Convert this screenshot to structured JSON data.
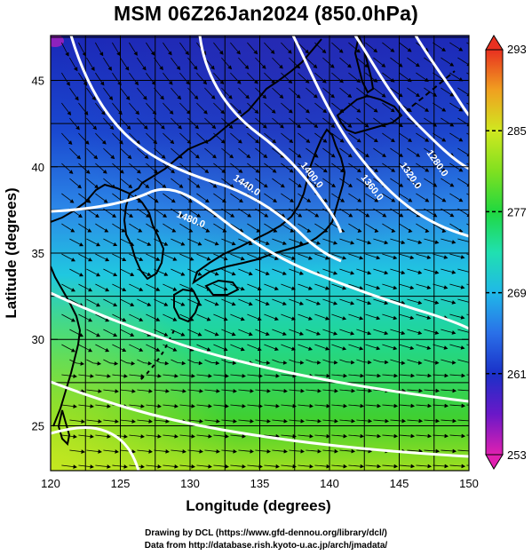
{
  "title": "MSM 06Z26Jan2024 (850.0hPa)",
  "xlabel": "Longitude (degrees)",
  "ylabel": "Latitude  (degrees)",
  "footer": {
    "line1": "Drawing by DCL (https://www.gfd-dennou.org/library/dcl/)",
    "line2": "Data from http://database.rish.kyoto-u.ac.jp/arch/jmadata/"
  },
  "map": {
    "lon_range": [
      120,
      150
    ],
    "lat_range": [
      22.4,
      47.6
    ],
    "lon_ticks": [
      120,
      125,
      130,
      135,
      140,
      145,
      150
    ],
    "lat_ticks": [
      25,
      30,
      35,
      40,
      45
    ],
    "temperature_colorbar": {
      "min": 253,
      "max": 293,
      "labels": [
        293,
        285,
        277,
        269,
        261,
        253
      ],
      "colors": [
        "#d020c0",
        "#6a18c8",
        "#1a30c8",
        "#2c78e8",
        "#20c8e8",
        "#20e0a0",
        "#30d030",
        "#a0e020",
        "#e8e820",
        "#f0a020",
        "#e83020"
      ]
    },
    "height_contour_labels": [
      "1480.0",
      "1440.0",
      "1400.0",
      "1360.0",
      "1320.0",
      "1280.0"
    ],
    "contour_color": "#ffffff",
    "vector_color": "#000000",
    "coastline_color": "#000000"
  }
}
